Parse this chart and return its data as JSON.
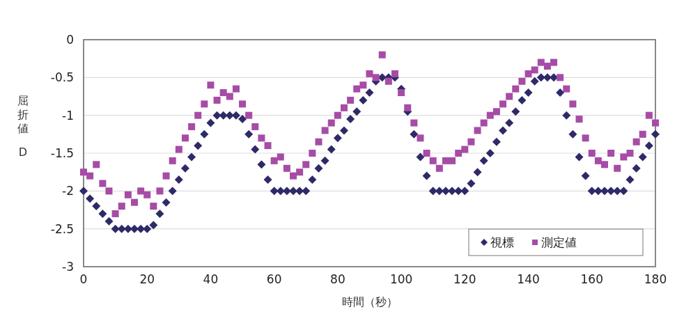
{
  "chart_data": {
    "type": "scatter",
    "xlabel": "時間（秒）",
    "ylabel": "屈折値 D",
    "xlim": [
      0,
      180
    ],
    "xticks": [
      0,
      20,
      40,
      60,
      80,
      100,
      120,
      140,
      160,
      180
    ],
    "ylim": [
      -3,
      0
    ],
    "yticks": [
      0,
      -0.5,
      -1,
      -1.5,
      -2,
      -2.5,
      -3
    ],
    "grid": "y",
    "legend": "bottom right",
    "series": [
      {
        "name": "視標",
        "color": "#2e2a68",
        "marker": "diamond",
        "x": [
          0,
          2,
          4,
          6,
          8,
          10,
          12,
          14,
          16,
          18,
          20,
          22,
          24,
          26,
          28,
          30,
          32,
          34,
          36,
          38,
          40,
          42,
          44,
          46,
          48,
          50,
          52,
          54,
          56,
          58,
          60,
          62,
          64,
          66,
          68,
          70,
          72,
          74,
          76,
          78,
          80,
          82,
          84,
          86,
          88,
          90,
          92,
          94,
          96,
          98,
          100,
          102,
          104,
          106,
          108,
          110,
          112,
          114,
          116,
          118,
          120,
          122,
          124,
          126,
          128,
          130,
          132,
          134,
          136,
          138,
          140,
          142,
          144,
          146,
          148,
          150,
          152,
          154,
          156,
          158,
          160,
          162,
          164,
          166,
          168,
          170,
          172,
          174,
          176,
          178,
          180
        ],
        "values": [
          -2,
          -2.1,
          -2.2,
          -2.3,
          -2.4,
          -2.5,
          -2.5,
          -2.5,
          -2.5,
          -2.5,
          -2.5,
          -2.45,
          -2.3,
          -2.15,
          -2,
          -1.85,
          -1.7,
          -1.55,
          -1.4,
          -1.25,
          -1.1,
          -1,
          -1,
          -1,
          -1,
          -1.05,
          -1.25,
          -1.45,
          -1.65,
          -1.85,
          -2,
          -2,
          -2,
          -2,
          -2,
          -2,
          -1.85,
          -1.7,
          -1.6,
          -1.45,
          -1.3,
          -1.2,
          -1.05,
          -0.95,
          -0.8,
          -0.7,
          -0.55,
          -0.5,
          -0.5,
          -0.5,
          -0.65,
          -0.95,
          -1.25,
          -1.55,
          -1.8,
          -2,
          -2,
          -2,
          -2,
          -2,
          -2,
          -1.9,
          -1.75,
          -1.6,
          -1.5,
          -1.35,
          -1.2,
          -1.1,
          -0.95,
          -0.8,
          -0.7,
          -0.55,
          -0.5,
          -0.5,
          -0.5,
          -0.7,
          -1,
          -1.25,
          -1.55,
          -1.8,
          -2,
          -2,
          -2,
          -2,
          -2,
          -2,
          -1.85,
          -1.7,
          -1.55,
          -1.4,
          -1.25
        ]
      },
      {
        "name": "測定値",
        "color": "#a64ca6",
        "marker": "square",
        "x": [
          0,
          2,
          4,
          6,
          8,
          10,
          12,
          14,
          16,
          18,
          20,
          22,
          24,
          26,
          28,
          30,
          32,
          34,
          36,
          38,
          40,
          42,
          44,
          46,
          48,
          50,
          52,
          54,
          56,
          58,
          60,
          62,
          64,
          66,
          68,
          70,
          72,
          74,
          76,
          78,
          80,
          82,
          84,
          86,
          88,
          90,
          92,
          94,
          96,
          98,
          100,
          102,
          104,
          106,
          108,
          110,
          112,
          114,
          116,
          118,
          120,
          122,
          124,
          126,
          128,
          130,
          132,
          134,
          136,
          138,
          140,
          142,
          144,
          146,
          148,
          150,
          152,
          154,
          156,
          158,
          160,
          162,
          164,
          166,
          168,
          170,
          172,
          174,
          176,
          178,
          180
        ],
        "values": [
          -1.75,
          -1.8,
          -1.65,
          -1.9,
          -2,
          -2.3,
          -2.2,
          -2.05,
          -2.15,
          -2,
          -2.05,
          -2.2,
          -2,
          -1.8,
          -1.6,
          -1.45,
          -1.3,
          -1.15,
          -1,
          -0.85,
          -0.6,
          -0.8,
          -0.7,
          -0.75,
          -0.65,
          -0.85,
          -1,
          -1.15,
          -1.3,
          -1.4,
          -1.6,
          -1.55,
          -1.7,
          -1.8,
          -1.75,
          -1.65,
          -1.5,
          -1.35,
          -1.2,
          -1.1,
          -1,
          -0.9,
          -0.8,
          -0.65,
          -0.6,
          -0.45,
          -0.5,
          -0.2,
          -0.55,
          -0.45,
          -0.7,
          -0.9,
          -1.1,
          -1.3,
          -1.5,
          -1.6,
          -1.7,
          -1.6,
          -1.6,
          -1.5,
          -1.45,
          -1.35,
          -1.2,
          -1.1,
          -1,
          -0.95,
          -0.85,
          -0.75,
          -0.65,
          -0.55,
          -0.45,
          -0.4,
          -0.3,
          -0.35,
          -0.3,
          -0.5,
          -0.65,
          -0.85,
          -1.05,
          -1.3,
          -1.5,
          -1.6,
          -1.65,
          -1.5,
          -1.7,
          -1.55,
          -1.5,
          -1.35,
          -1.25,
          -1,
          -1.1
        ]
      }
    ]
  }
}
